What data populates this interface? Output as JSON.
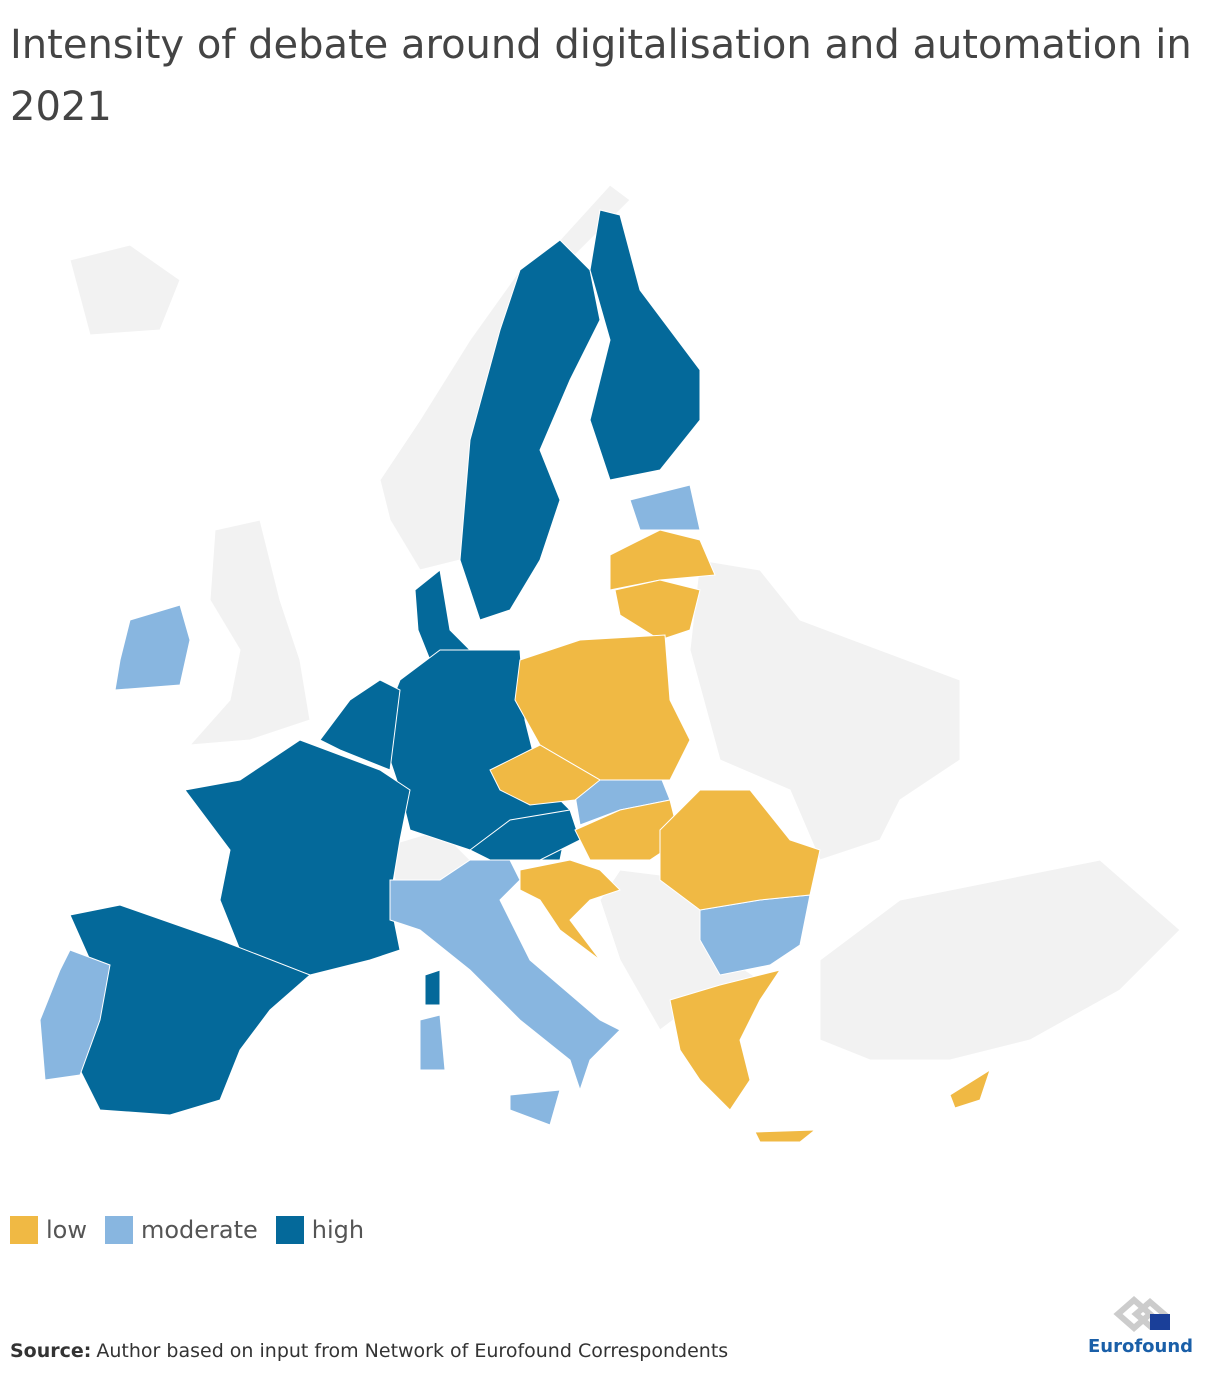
{
  "title": "Intensity of debate around digitalisation and automation in 2021",
  "legend": {
    "items": [
      {
        "label": "low",
        "color": "#f0b944"
      },
      {
        "label": "moderate",
        "color": "#88b6e0"
      },
      {
        "label": "high",
        "color": "#04699a"
      }
    ]
  },
  "source": {
    "label": "Source:",
    "text": "Author based on input from Network of Eurofound Correspondents"
  },
  "logo": {
    "text": "Eurofound"
  }
}
